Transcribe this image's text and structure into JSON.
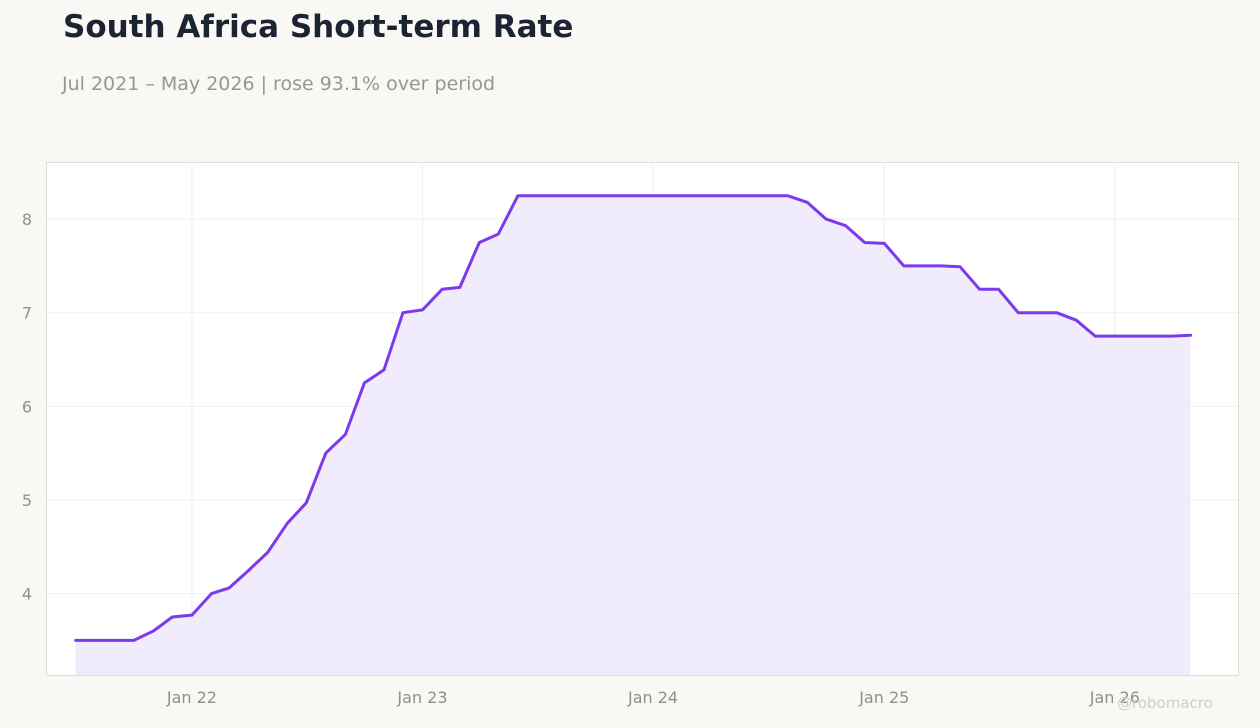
{
  "title": "South Africa Short-term Rate",
  "subtitle": "Jul 2021 – May 2026 | rose 93.1% over period",
  "watermark": "@robomacro",
  "colors": {
    "line": "#7c3aed",
    "fill": "#f1ecfc",
    "plot_background": "#ffffff",
    "page_background": "#f9f8f5",
    "grid": "#efefef",
    "tick_text": "#8f8f8f",
    "title": "#1c2333"
  },
  "chart_data": {
    "type": "area",
    "title": "South Africa Short-term Rate",
    "subtitle": "Jul 2021 – May 2026 | rose 93.1% over period",
    "xlabel": "",
    "ylabel": "",
    "grid": true,
    "legend": "none",
    "xlim": [
      "2021-05-15",
      "2026-07-15"
    ],
    "ylim": [
      3.13,
      8.61
    ],
    "x_ticks": [
      {
        "date": "2022-01-01",
        "label": "Jan 22"
      },
      {
        "date": "2023-01-01",
        "label": "Jan 23"
      },
      {
        "date": "2024-01-01",
        "label": "Jan 24"
      },
      {
        "date": "2025-01-01",
        "label": "Jan 25"
      },
      {
        "date": "2026-01-01",
        "label": "Jan 26"
      }
    ],
    "y_ticks": [
      4,
      5,
      6,
      7,
      8
    ],
    "series": [
      {
        "x": [
          "2021-07-01",
          "2021-08-01",
          "2021-09-01",
          "2021-10-01",
          "2021-11-01",
          "2021-12-01",
          "2022-01-01",
          "2022-02-01",
          "2022-03-01",
          "2022-04-01",
          "2022-05-01",
          "2022-06-01",
          "2022-07-01",
          "2022-08-01",
          "2022-09-01",
          "2022-10-01",
          "2022-11-01",
          "2022-12-01",
          "2023-01-01",
          "2023-02-01",
          "2023-03-01",
          "2023-04-01",
          "2023-05-01",
          "2023-06-01",
          "2023-07-01",
          "2023-08-01",
          "2023-09-01",
          "2023-10-01",
          "2023-11-01",
          "2023-12-01",
          "2024-01-01",
          "2024-02-01",
          "2024-03-01",
          "2024-04-01",
          "2024-05-01",
          "2024-06-01",
          "2024-07-01",
          "2024-08-01",
          "2024-09-01",
          "2024-10-01",
          "2024-11-01",
          "2024-12-01",
          "2025-01-01",
          "2025-02-01",
          "2025-03-01",
          "2025-04-01",
          "2025-05-01",
          "2025-06-01",
          "2025-07-01",
          "2025-08-01",
          "2025-09-01",
          "2025-10-01",
          "2025-11-01",
          "2025-12-01",
          "2026-01-01",
          "2026-02-01",
          "2026-03-01",
          "2026-04-01",
          "2026-05-01"
        ],
        "values": [
          3.5,
          3.5,
          3.5,
          3.5,
          3.6,
          3.75,
          3.77,
          4.0,
          4.06,
          4.25,
          4.44,
          4.75,
          4.97,
          5.5,
          5.7,
          6.25,
          6.39,
          7.0,
          7.03,
          7.25,
          7.27,
          7.75,
          7.84,
          8.25,
          8.25,
          8.25,
          8.25,
          8.25,
          8.25,
          8.25,
          8.25,
          8.25,
          8.25,
          8.25,
          8.25,
          8.25,
          8.25,
          8.25,
          8.18,
          8.0,
          7.93,
          7.75,
          7.74,
          7.5,
          7.5,
          7.5,
          7.49,
          7.25,
          7.25,
          7.0,
          7.0,
          7.0,
          6.92,
          6.75,
          6.75,
          6.75,
          6.75,
          6.75,
          6.76
        ]
      }
    ]
  }
}
